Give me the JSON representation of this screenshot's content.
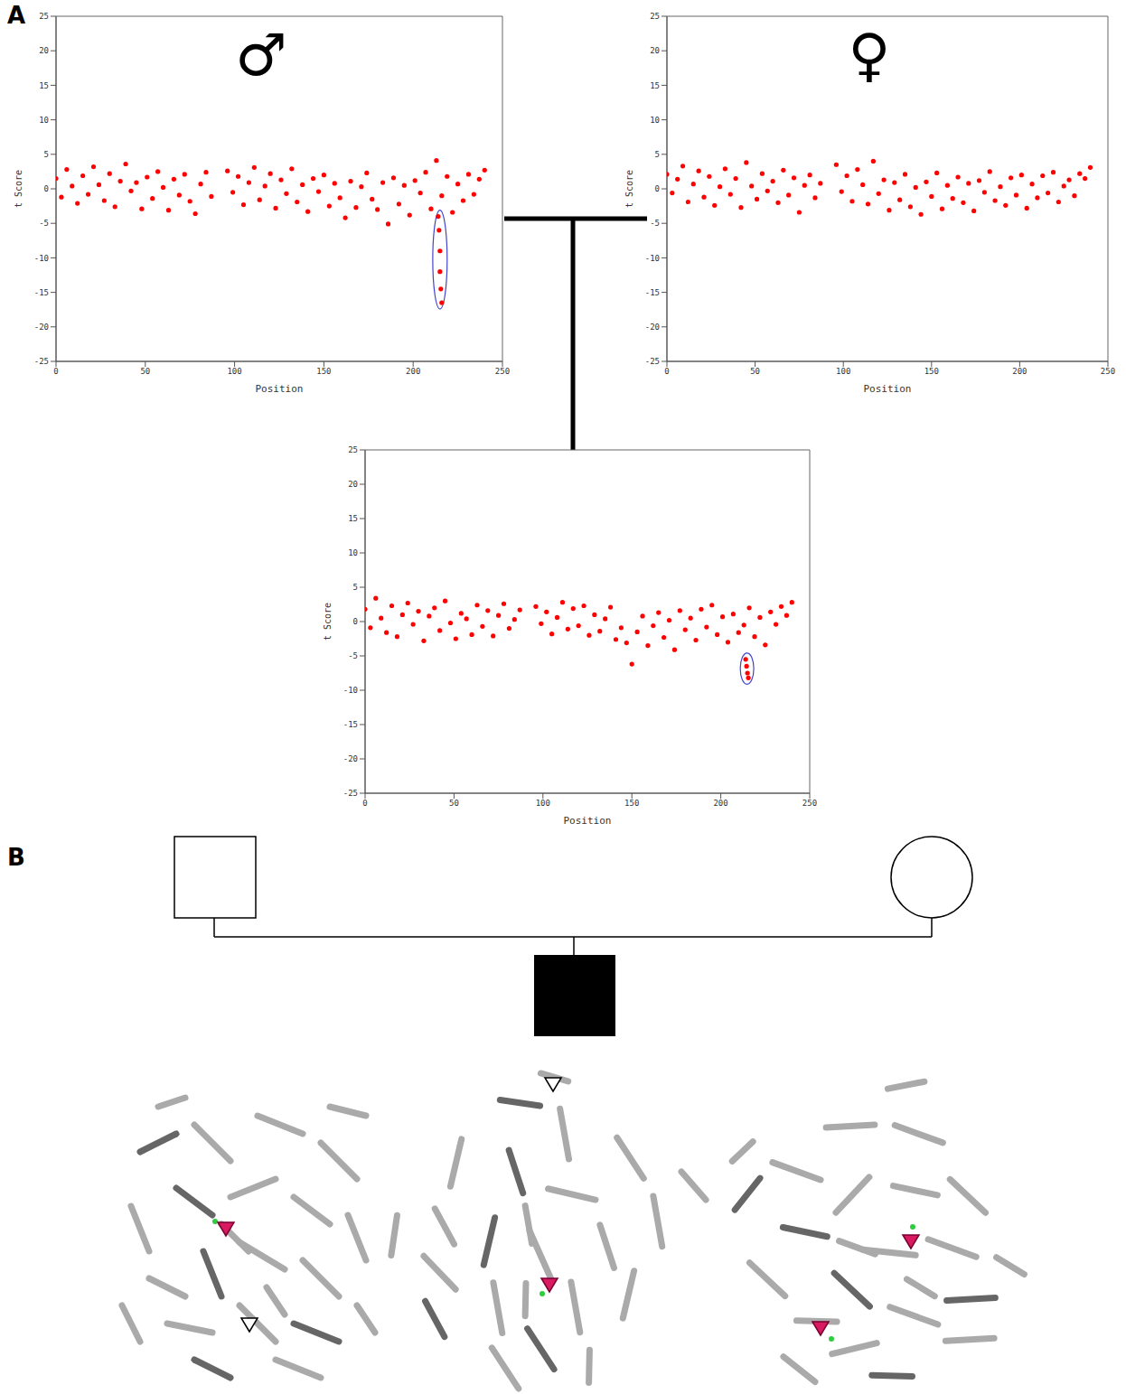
{
  "panel_labels": [
    "A",
    "B"
  ],
  "chart_data": [
    {
      "type": "scatter",
      "title": "♂",
      "x_label": "Position",
      "y_label": "t Score",
      "color": "#ff0000",
      "marker": "circle",
      "xlim": [
        0,
        250
      ],
      "ylim": [
        -25,
        25
      ],
      "xticks": [
        0,
        50,
        100,
        150,
        200,
        250
      ],
      "yticks": [
        -25,
        -20,
        -15,
        -10,
        -5,
        0,
        5,
        10,
        15,
        20,
        25
      ],
      "x": [
        0,
        3,
        6,
        9,
        12,
        15,
        18,
        21,
        24,
        27,
        30,
        33,
        36,
        39,
        42,
        45,
        48,
        51,
        54,
        57,
        60,
        63,
        66,
        69,
        72,
        75,
        78,
        81,
        84,
        87,
        96,
        99,
        102,
        105,
        108,
        111,
        114,
        117,
        120,
        123,
        126,
        129,
        132,
        135,
        138,
        141,
        144,
        147,
        150,
        153,
        156,
        159,
        162,
        165,
        168,
        171,
        174,
        177,
        180,
        183,
        186,
        189,
        192,
        195,
        198,
        201,
        204,
        207,
        210,
        213,
        216,
        219,
        222,
        225,
        228,
        231,
        234,
        237,
        240
      ],
      "values": [
        1.5,
        -1.2,
        2.8,
        0.4,
        -2.1,
        1.9,
        -0.8,
        3.2,
        0.6,
        -1.7,
        2.2,
        -2.6,
        1.1,
        3.6,
        -0.3,
        0.9,
        -2.9,
        1.7,
        -1.4,
        2.5,
        0.2,
        -3.1,
        1.4,
        -0.9,
        2.1,
        -1.8,
        -3.6,
        0.7,
        2.4,
        -1.1,
        2.6,
        -0.5,
        1.8,
        -2.3,
        0.9,
        3.1,
        -1.6,
        0.4,
        2.2,
        -2.8,
        1.3,
        -0.7,
        2.9,
        -1.9,
        0.6,
        -3.3,
        1.5,
        -0.4,
        2.0,
        -2.5,
        0.8,
        -1.3,
        -4.2,
        1.1,
        -2.7,
        0.3,
        2.3,
        -1.5,
        -3.0,
        0.9,
        -5.1,
        1.6,
        -2.2,
        0.5,
        -3.8,
        1.2,
        -0.6,
        2.4,
        -2.9,
        4.1,
        -1.0,
        1.8,
        -3.4,
        0.7,
        -1.7,
        2.1,
        -0.8,
        1.4,
        2.7
      ],
      "deletion": {
        "x": [
          214,
          214.5,
          215,
          215,
          215.5,
          216
        ],
        "values": [
          -4,
          -6,
          -9,
          -12,
          -14.5,
          -16.5
        ]
      }
    },
    {
      "type": "scatter",
      "title": "♀",
      "x_label": "Position",
      "y_label": "t Score",
      "color": "#ff0000",
      "marker": "circle",
      "xlim": [
        0,
        250
      ],
      "ylim": [
        -25,
        25
      ],
      "xticks": [
        0,
        50,
        100,
        150,
        200,
        250
      ],
      "yticks": [
        -25,
        -20,
        -15,
        -10,
        -5,
        0,
        5,
        10,
        15,
        20,
        25
      ],
      "x": [
        0,
        3,
        6,
        9,
        12,
        15,
        18,
        21,
        24,
        27,
        30,
        33,
        36,
        39,
        42,
        45,
        48,
        51,
        54,
        57,
        60,
        63,
        66,
        69,
        72,
        75,
        78,
        81,
        84,
        87,
        96,
        99,
        102,
        105,
        108,
        111,
        114,
        117,
        120,
        123,
        126,
        129,
        132,
        135,
        138,
        141,
        144,
        147,
        150,
        153,
        156,
        159,
        162,
        165,
        168,
        171,
        174,
        177,
        180,
        183,
        186,
        189,
        192,
        195,
        198,
        201,
        204,
        207,
        210,
        213,
        216,
        219,
        222,
        225,
        228,
        231,
        234,
        237,
        240
      ],
      "values": [
        2.1,
        -0.6,
        1.4,
        3.3,
        -1.9,
        0.7,
        2.6,
        -1.2,
        1.8,
        -2.4,
        0.3,
        2.9,
        -0.8,
        1.5,
        -2.7,
        3.8,
        0.4,
        -1.5,
        2.2,
        -0.3,
        1.1,
        -2.0,
        2.7,
        -0.9,
        1.6,
        -3.4,
        0.5,
        2.0,
        -1.3,
        0.8,
        3.5,
        -0.4,
        1.9,
        -1.8,
        2.8,
        0.6,
        -2.2,
        4.0,
        -0.7,
        1.3,
        -3.1,
        0.9,
        -1.6,
        2.1,
        -2.6,
        0.2,
        -3.7,
        1.0,
        -1.1,
        2.3,
        -2.9,
        0.5,
        -1.4,
        1.7,
        -2.0,
        0.8,
        -3.2,
        1.2,
        -0.5,
        2.5,
        -1.7,
        0.3,
        -2.4,
        1.6,
        -0.9,
        2.0,
        -2.8,
        0.7,
        -1.3,
        1.9,
        -0.6,
        2.4,
        -1.9,
        0.4,
        1.3,
        -1.0,
        2.2,
        1.5,
        3.1
      ]
    },
    {
      "type": "scatter",
      "x_label": "Position",
      "y_label": "t Score",
      "color": "#ff0000",
      "marker": "circle",
      "xlim": [
        0,
        250
      ],
      "ylim": [
        -25,
        25
      ],
      "xticks": [
        0,
        50,
        100,
        150,
        200,
        250
      ],
      "yticks": [
        -25,
        -20,
        -15,
        -10,
        -5,
        0,
        5,
        10,
        15,
        20,
        25
      ],
      "x": [
        0,
        3,
        6,
        9,
        12,
        15,
        18,
        21,
        24,
        27,
        30,
        33,
        36,
        39,
        42,
        45,
        48,
        51,
        54,
        57,
        60,
        63,
        66,
        69,
        72,
        75,
        78,
        81,
        84,
        87,
        96,
        99,
        102,
        105,
        108,
        111,
        114,
        117,
        120,
        123,
        126,
        129,
        132,
        135,
        138,
        141,
        144,
        147,
        150,
        153,
        156,
        159,
        162,
        165,
        168,
        171,
        174,
        177,
        180,
        183,
        186,
        189,
        192,
        195,
        198,
        201,
        204,
        207,
        210,
        213,
        216,
        219,
        222,
        225,
        228,
        231,
        234,
        237,
        240
      ],
      "values": [
        1.8,
        -0.9,
        3.4,
        0.5,
        -1.6,
        2.3,
        -2.2,
        1.0,
        2.7,
        -0.4,
        1.5,
        -2.8,
        0.8,
        2.0,
        -1.3,
        3.0,
        -0.2,
        -2.5,
        1.2,
        0.4,
        -1.9,
        2.4,
        -0.7,
        1.6,
        -2.1,
        0.9,
        2.6,
        -1.0,
        0.3,
        1.7,
        2.2,
        -0.3,
        1.4,
        -1.8,
        0.6,
        2.8,
        -1.1,
        1.9,
        -0.6,
        2.3,
        -2.0,
        1.0,
        -1.4,
        0.4,
        2.1,
        -2.6,
        -0.9,
        -3.1,
        -6.2,
        -1.5,
        0.8,
        -3.5,
        -0.6,
        1.3,
        -2.3,
        0.2,
        -4.1,
        1.6,
        -1.2,
        0.5,
        -2.7,
        1.8,
        -0.8,
        2.4,
        -1.9,
        0.7,
        -3.0,
        1.1,
        -1.6,
        -0.5,
        2.0,
        -2.2,
        0.6,
        -3.4,
        1.4,
        -0.4,
        2.2,
        0.9,
        2.8
      ],
      "deletion": {
        "x": [
          214,
          214.5,
          215,
          215.5
        ],
        "values": [
          -5.5,
          -6.5,
          -7.5,
          -8.2
        ]
      }
    }
  ]
}
